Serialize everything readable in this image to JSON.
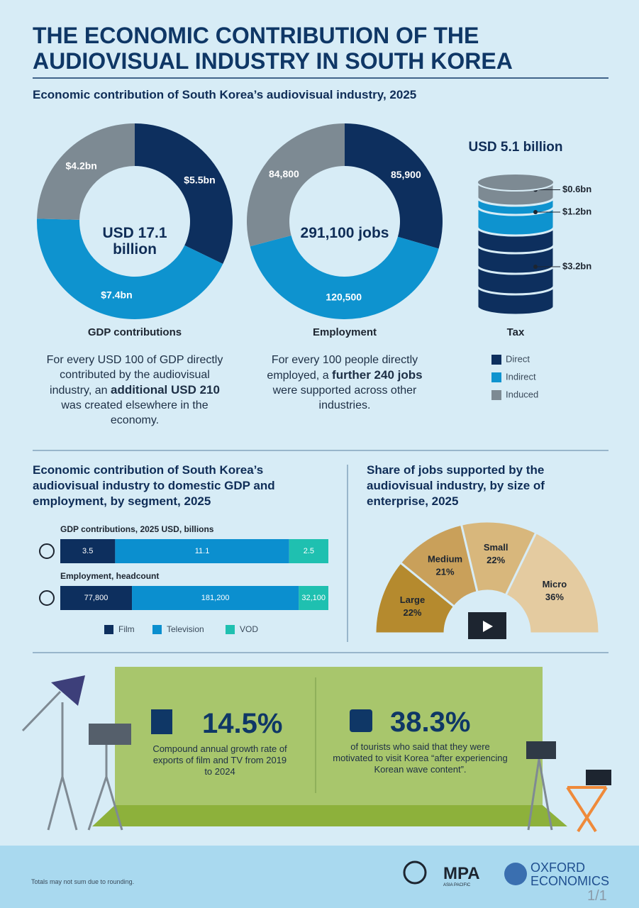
{
  "header": {
    "title": "THE ECONOMIC CONTRIBUTION OF THE AUDIOVISUAL INDUSTRY IN SOUTH KOREA",
    "subtitle": "Economic contribution of South Korea’s audiovisual industry, 2025"
  },
  "chart_data": [
    {
      "type": "donut",
      "title": "GDP contributions",
      "center_label": "USD 17.1 billion",
      "categories": [
        "Direct",
        "Indirect",
        "Induced"
      ],
      "values": [
        5.5,
        7.4,
        4.2
      ],
      "value_labels": [
        "$5.5bn",
        "$7.4bn",
        "$4.2bn"
      ],
      "colors": [
        "#0d2f5e",
        "#0e93cf",
        "#7d8a93"
      ],
      "note": [
        {
          "text": "For every USD 100 of GDP directly contributed by the audiovisual industry, an ",
          "bold": false
        },
        {
          "text": "additional USD 210",
          "bold": true
        },
        {
          "text": " was created elsewhere in the economy.",
          "bold": false
        }
      ]
    },
    {
      "type": "donut",
      "title": "Employment",
      "center_label": "291,100 jobs",
      "categories": [
        "Direct",
        "Indirect",
        "Induced"
      ],
      "values": [
        85900,
        120500,
        84800
      ],
      "value_labels": [
        "85,900",
        "120,500",
        "84,800"
      ],
      "colors": [
        "#0d2f5e",
        "#0e93cf",
        "#7d8a93"
      ],
      "note": [
        {
          "text": "For every 100 people directly employed, a ",
          "bold": false
        },
        {
          "text": "further 240 jobs",
          "bold": true
        },
        {
          "text": " were supported across other industries.",
          "bold": false
        }
      ]
    },
    {
      "type": "cylinder",
      "title": "Tax",
      "total_label": "USD 5.1 billion",
      "categories": [
        "Direct",
        "Indirect",
        "Induced"
      ],
      "values": [
        3.2,
        1.2,
        0.6
      ],
      "value_labels": [
        "$3.2bn",
        "$1.2bn",
        "$0.6bn"
      ],
      "colors": [
        "#0d2f5e",
        "#0e93cf",
        "#7d8a93"
      ]
    },
    {
      "type": "stacked-bar",
      "title": "Economic contribution of South Korea’s audiovisual industry to domestic GDP and employment, by segment, 2025",
      "categories": [
        "GDP contributions, 2025 USD, billions",
        "Employment, headcount"
      ],
      "series": [
        {
          "name": "Film",
          "color": "#0d2f5e",
          "values": [
            3.5,
            77800
          ],
          "value_labels": [
            "3.5",
            "77,800"
          ]
        },
        {
          "name": "Television",
          "color": "#0b8fcf",
          "values": [
            11.1,
            181200
          ],
          "value_labels": [
            "11.1",
            "181,200"
          ]
        },
        {
          "name": "VOD",
          "color": "#1fc0b0",
          "values": [
            2.5,
            32100
          ],
          "value_labels": [
            "2.5",
            "32,100"
          ]
        }
      ]
    },
    {
      "type": "half-donut",
      "title": "Share of jobs supported by the audiovisual industry, by size of enterprise, 2025",
      "categories": [
        "Large",
        "Medium",
        "Small",
        "Micro"
      ],
      "values": [
        22,
        21,
        22,
        36
      ],
      "value_labels": [
        "22%",
        "21%",
        "22%",
        "36%"
      ],
      "colors": [
        "#b58a2e",
        "#c9a05a",
        "#d8b77c",
        "#e4cba0"
      ]
    }
  ],
  "legend": [
    {
      "name": "Direct",
      "color": "#0d2f5e"
    },
    {
      "name": "Indirect",
      "color": "#0e93cf"
    },
    {
      "name": "Induced",
      "color": "#7d8a93"
    }
  ],
  "stats": [
    {
      "value": "14.5%",
      "text": "Compound annual growth rate of exports of film and TV from 2019 to 2024"
    },
    {
      "value": "38.3%",
      "text": "of tourists who said that they were motivated to visit Korea “after experiencing Korean wave content”."
    }
  ],
  "footer": {
    "note": "Totals may not sum due to rounding.",
    "logo_1": "MPA",
    "logo_1_sub": "ASIA PACIFIC",
    "logo_2_line_1": "OXFORD",
    "logo_2_line_2": "ECONOMICS",
    "page": "1/1"
  }
}
